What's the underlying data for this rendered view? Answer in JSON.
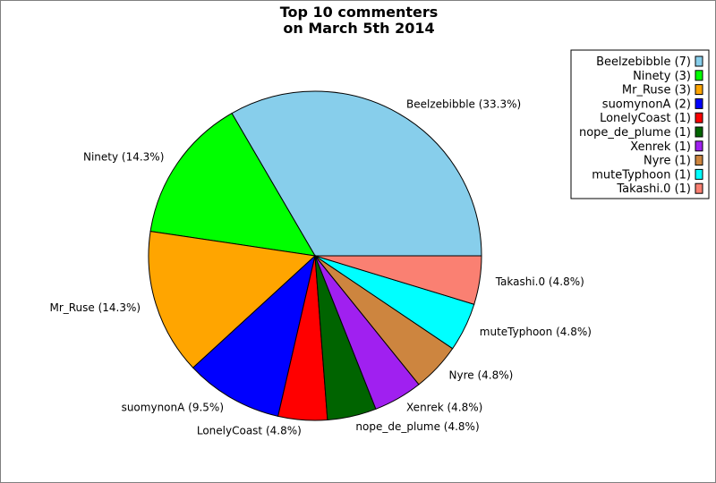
{
  "chart_data": {
    "type": "pie",
    "title": [
      "Top 10 commenters",
      "on March 5th 2014"
    ],
    "slices": [
      {
        "name": "Beelzebibble",
        "count": 7,
        "percent": "33.3%",
        "color": "#87ceeb"
      },
      {
        "name": "Ninety",
        "count": 3,
        "percent": "14.3%",
        "color": "#00ff00"
      },
      {
        "name": "Mr_Ruse",
        "count": 3,
        "percent": "14.3%",
        "color": "#ffa500"
      },
      {
        "name": "suomynonA",
        "count": 2,
        "percent": "9.5%",
        "color": "#0000ff"
      },
      {
        "name": "LonelyCoast",
        "count": 1,
        "percent": "4.8%",
        "color": "#ff0000"
      },
      {
        "name": "nope_de_plume",
        "count": 1,
        "percent": "4.8%",
        "color": "#006400"
      },
      {
        "name": "Xenrek",
        "count": 1,
        "percent": "4.8%",
        "color": "#a020f0"
      },
      {
        "name": "Nyre",
        "count": 1,
        "percent": "4.8%",
        "color": "#cd853f"
      },
      {
        "name": "muteTyphoon",
        "count": 1,
        "percent": "4.8%",
        "color": "#00ffff"
      },
      {
        "name": "Takashi.0",
        "count": 1,
        "percent": "4.8%",
        "color": "#fa8072"
      }
    ],
    "legend_position": "top-right"
  }
}
